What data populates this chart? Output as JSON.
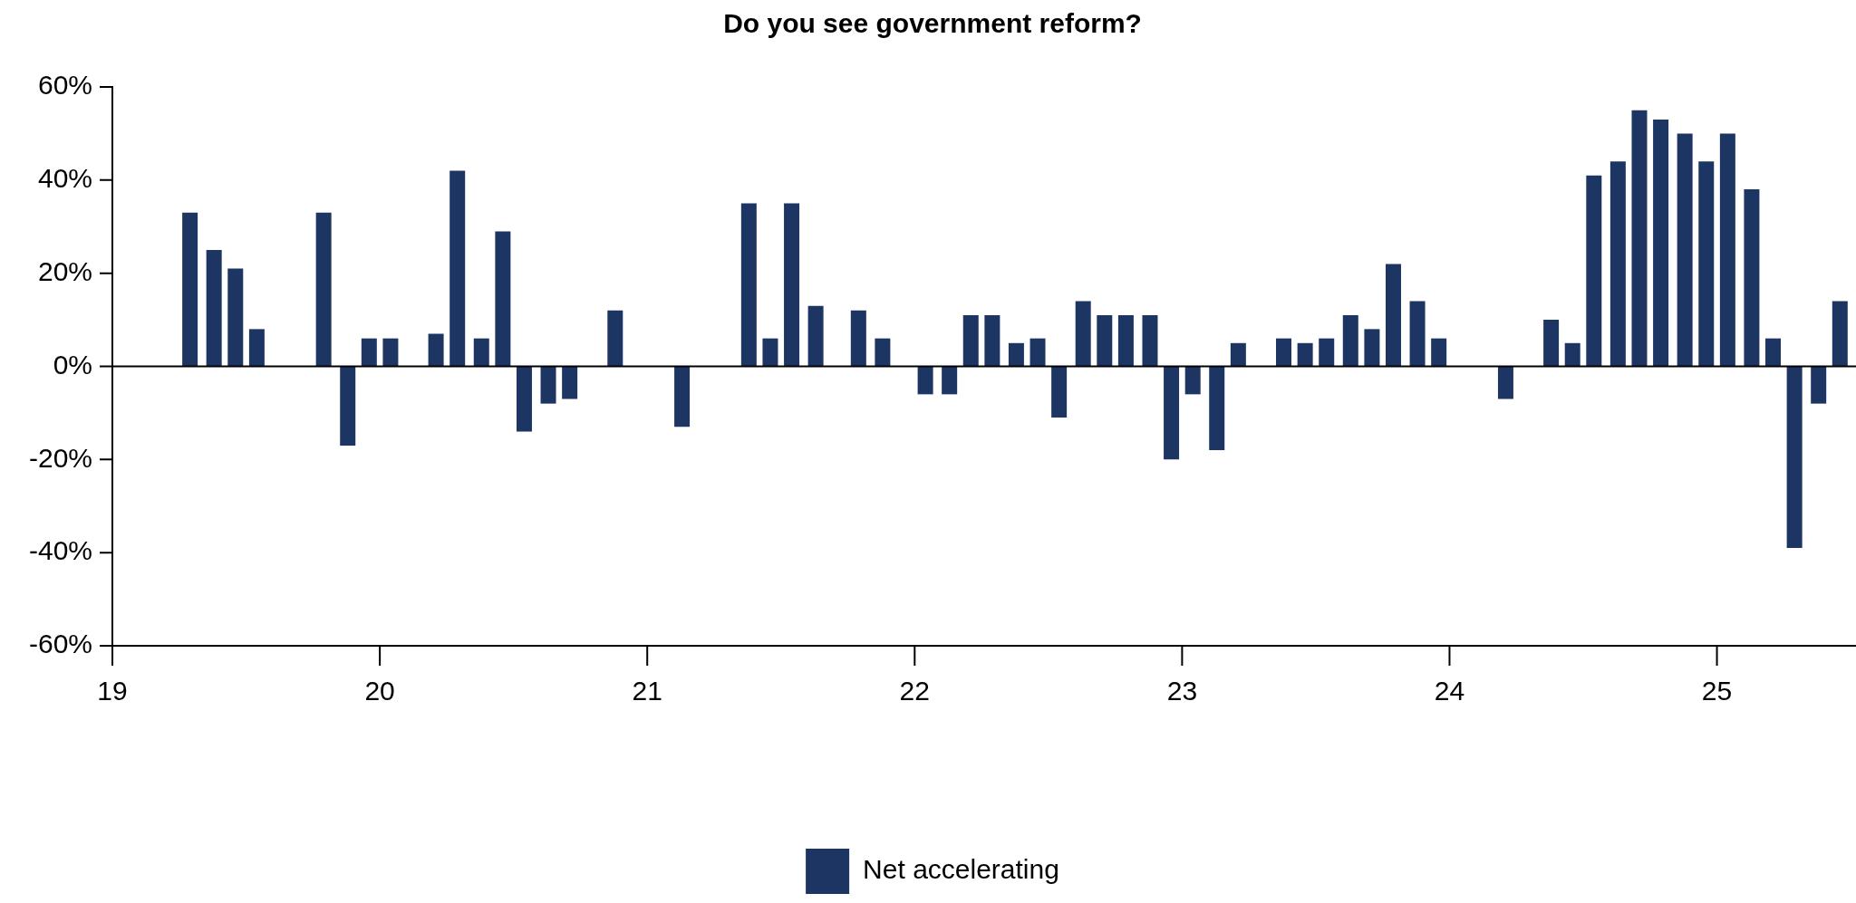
{
  "chart_data": {
    "type": "bar",
    "title": "Do you see government reform?",
    "x": [
      19.29,
      19.38,
      19.46,
      19.54,
      19.79,
      19.88,
      19.96,
      20.04,
      20.21,
      20.29,
      20.38,
      20.46,
      20.54,
      20.63,
      20.71,
      20.88,
      21.13,
      21.38,
      21.46,
      21.54,
      21.63,
      21.79,
      21.88,
      22.04,
      22.13,
      22.21,
      22.29,
      22.38,
      22.46,
      22.54,
      22.63,
      22.71,
      22.79,
      22.88,
      22.96,
      23.04,
      23.13,
      23.21,
      23.38,
      23.46,
      23.54,
      23.63,
      23.71,
      23.79,
      23.88,
      23.96,
      24.21,
      24.38,
      24.46,
      24.54,
      24.63,
      24.71,
      24.79,
      24.88,
      24.96,
      25.04,
      25.13,
      25.21,
      25.29,
      25.38,
      25.46
    ],
    "series": [
      {
        "name": "Net accelerating",
        "color": "#1d3563",
        "values": [
          33,
          25,
          21,
          8,
          33,
          -17,
          6,
          6,
          7,
          42,
          6,
          29,
          -14,
          -8,
          -7,
          12,
          -13,
          35,
          6,
          35,
          13,
          12,
          6,
          -6,
          -6,
          11,
          11,
          5,
          6,
          -11,
          14,
          11,
          11,
          11,
          -20,
          -6,
          -18,
          5,
          6,
          5,
          6,
          11,
          8,
          22,
          14,
          6,
          -7,
          10,
          5,
          41,
          44,
          55,
          53,
          50,
          44,
          50,
          38,
          6,
          -39,
          -8,
          14
        ]
      }
    ],
    "xlim": [
      19,
      25.52
    ],
    "xticks": [
      19,
      20,
      21,
      22,
      23,
      24,
      25
    ],
    "ylim": [
      -60,
      60
    ],
    "yticks": [
      {
        "value": -60,
        "label": "-60%"
      },
      {
        "value": -40,
        "label": "-40%"
      },
      {
        "value": -20,
        "label": "-20%"
      },
      {
        "value": 0,
        "label": "0%"
      },
      {
        "value": 20,
        "label": "20%"
      },
      {
        "value": 40,
        "label": "40%"
      },
      {
        "value": 60,
        "label": "60%"
      }
    ],
    "ref_lines": [
      {
        "axis": "y",
        "value": 0,
        "color": "#000000"
      }
    ],
    "grid": false,
    "legend": "bottom"
  }
}
